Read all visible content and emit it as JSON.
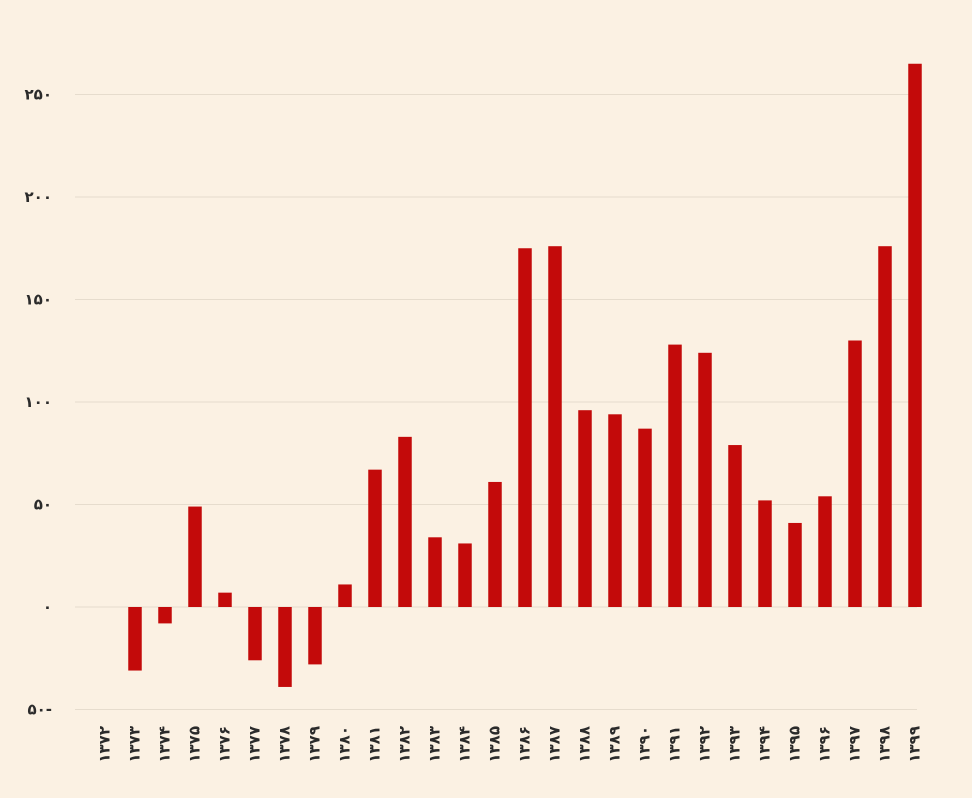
{
  "colors": {
    "background": "#fbf1e3",
    "bar": "#c30a0a",
    "grid": "#e6dccd",
    "text": "#2b2b2b"
  },
  "chart_data": {
    "type": "bar",
    "title": "",
    "xlabel": "",
    "ylabel": "",
    "ylim": [
      -50,
      270
    ],
    "yticks": [
      -50,
      0,
      50,
      100,
      150,
      200,
      250
    ],
    "ytick_labels": [
      "۵۰-",
      "۰",
      "۵۰",
      "۱۰۰",
      "۱۵۰",
      "۲۰۰",
      "۲۵۰"
    ],
    "grid": true,
    "categories": [
      "۱۳۷۲",
      "۱۳۷۳",
      "۱۳۷۴",
      "۱۳۷۵",
      "۱۳۷۶",
      "۱۳۷۷",
      "۱۳۷۸",
      "۱۳۷۹",
      "۱۳۸۰",
      "۱۳۸۱",
      "۱۳۸۲",
      "۱۳۸۳",
      "۱۳۸۴",
      "۱۳۸۵",
      "۱۳۸۶",
      "۱۳۸۷",
      "۱۳۸۸",
      "۱۳۸۹",
      "۱۳۹۰",
      "۱۳۹۱",
      "۱۳۹۲",
      "۱۳۹۳",
      "۱۳۹۴",
      "۱۳۹۵",
      "۱۳۹۶",
      "۱۳۹۷",
      "۱۳۹۸",
      "۱۳۹۹"
    ],
    "values": [
      0,
      -31,
      -8,
      49,
      7,
      -26,
      -39,
      -28,
      11,
      67,
      83,
      34,
      31,
      61,
      175,
      176,
      96,
      94,
      87,
      128,
      124,
      79,
      52,
      41,
      54,
      130,
      176,
      265
    ]
  }
}
